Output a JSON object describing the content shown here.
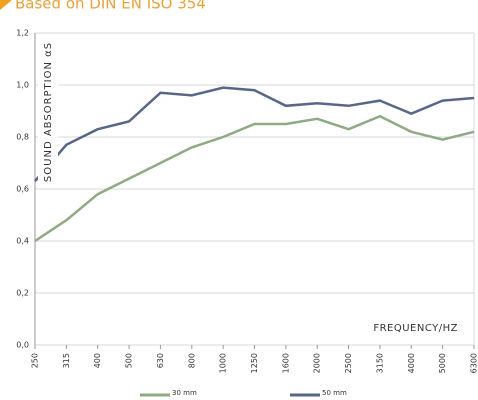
{
  "chart_data": {
    "type": "line",
    "title": "Based on DIN EN ISO 354",
    "y_label": "SOUND ABSORPTION αS",
    "x_label": "FREQUENCY/HZ",
    "categories": [
      "250",
      "315",
      "400",
      "500",
      "630",
      "800",
      "1000",
      "1250",
      "1600",
      "2000",
      "2500",
      "3150",
      "4000",
      "5000",
      "6300"
    ],
    "series": [
      {
        "name": "30 mm",
        "color": "#8faa84",
        "values": [
          0.4,
          0.48,
          0.58,
          0.64,
          0.7,
          0.76,
          0.8,
          0.85,
          0.85,
          0.87,
          0.83,
          0.88,
          0.82,
          0.79,
          0.82
        ]
      },
      {
        "name": "50 mm",
        "color": "#5a6688",
        "values": [
          0.63,
          0.77,
          0.83,
          0.86,
          0.97,
          0.96,
          0.99,
          0.98,
          0.92,
          0.93,
          0.92,
          0.94,
          0.89,
          0.94,
          0.95
        ]
      }
    ],
    "ylim": [
      0,
      1.2
    ],
    "yticks": [
      {
        "value": 0,
        "label": "0,0"
      },
      {
        "value": 0.2,
        "label": "0,2"
      },
      {
        "value": 0.4,
        "label": "0,4"
      },
      {
        "value": 0.6,
        "label": "0,6"
      },
      {
        "value": 0.8,
        "label": "0,8"
      },
      {
        "value": 1.0,
        "label": "1,0"
      },
      {
        "value": 1.2,
        "label": "1,2"
      }
    ],
    "grid": true
  }
}
